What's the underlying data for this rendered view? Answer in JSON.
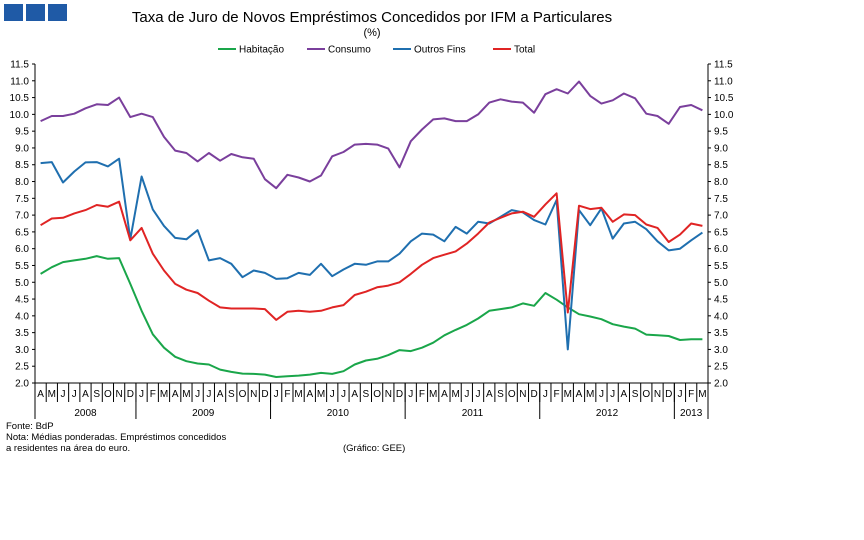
{
  "chart_data": {
    "type": "line",
    "title": "Taxa de Juro de Novos Empréstimos Concedidos por IFM a Particulares",
    "subtitle": "(%)",
    "ylim": [
      2.0,
      11.5
    ],
    "yticks": [
      "2.0",
      "2.5",
      "3.0",
      "3.5",
      "4.0",
      "4.5",
      "5.0",
      "5.5",
      "6.0",
      "6.5",
      "7.0",
      "7.5",
      "8.0",
      "8.5",
      "9.0",
      "9.5",
      "10.0",
      "10.5",
      "11.0",
      "11.5"
    ],
    "month_labels": [
      "A",
      "M",
      "J",
      "J",
      "A",
      "S",
      "O",
      "N",
      "D",
      "J",
      "F",
      "M",
      "A",
      "M",
      "J",
      "J",
      "A",
      "S",
      "O",
      "N",
      "D",
      "J",
      "F",
      "M",
      "A",
      "M",
      "J",
      "J",
      "A",
      "S",
      "O",
      "N",
      "D",
      "J",
      "F",
      "M",
      "A",
      "M",
      "J",
      "J",
      "A",
      "S",
      "O",
      "N",
      "D",
      "J",
      "F",
      "M",
      "A",
      "M",
      "J",
      "J",
      "A",
      "S",
      "O",
      "N",
      "D",
      "J",
      "F",
      "M"
    ],
    "year_labels": [
      {
        "label": "2008",
        "start": 0,
        "end": 9
      },
      {
        "label": "2009",
        "start": 9,
        "end": 21
      },
      {
        "label": "2010",
        "start": 21,
        "end": 33
      },
      {
        "label": "2011",
        "start": 33,
        "end": 45
      },
      {
        "label": "2012",
        "start": 45,
        "end": 57
      },
      {
        "label": "2013",
        "start": 57,
        "end": 60
      }
    ],
    "series": [
      {
        "name": "Habitação",
        "color": "#1aa64a",
        "values": [
          5.25,
          5.45,
          5.6,
          5.65,
          5.7,
          5.78,
          5.7,
          5.72,
          4.95,
          4.15,
          3.45,
          3.05,
          2.78,
          2.65,
          2.58,
          2.55,
          2.4,
          2.33,
          2.28,
          2.27,
          2.25,
          2.18,
          2.2,
          2.22,
          2.25,
          2.3,
          2.27,
          2.35,
          2.55,
          2.67,
          2.72,
          2.83,
          2.98,
          2.95,
          3.05,
          3.2,
          3.42,
          3.58,
          3.73,
          3.92,
          4.15,
          4.2,
          4.25,
          4.37,
          4.3,
          4.68,
          4.48,
          4.25,
          4.05,
          3.98,
          3.9,
          3.75,
          3.68,
          3.62,
          3.44,
          3.42,
          3.4,
          3.28,
          3.3,
          3.3
        ]
      },
      {
        "name": "Consumo",
        "color": "#7a3f9c",
        "values": [
          9.8,
          9.95,
          9.95,
          10.02,
          10.18,
          10.3,
          10.28,
          10.5,
          9.92,
          10.02,
          9.92,
          9.33,
          8.92,
          8.85,
          8.6,
          8.85,
          8.62,
          8.82,
          8.72,
          8.68,
          8.07,
          7.8,
          8.2,
          8.12,
          8.0,
          8.18,
          8.75,
          8.88,
          9.1,
          9.12,
          9.1,
          8.98,
          8.42,
          9.2,
          9.55,
          9.85,
          9.88,
          9.8,
          9.8,
          10.0,
          10.35,
          10.45,
          10.38,
          10.35,
          10.05,
          10.6,
          10.75,
          10.62,
          10.98,
          10.55,
          10.32,
          10.42,
          10.62,
          10.48,
          10.02,
          9.95,
          9.72,
          10.22,
          10.28,
          10.12
        ]
      },
      {
        "name": "Outros Fins",
        "color": "#1f6faf",
        "values": [
          8.55,
          8.58,
          7.97,
          8.3,
          8.57,
          8.58,
          8.45,
          8.68,
          6.28,
          8.15,
          7.17,
          6.68,
          6.32,
          6.28,
          6.55,
          5.65,
          5.72,
          5.55,
          5.15,
          5.35,
          5.28,
          5.1,
          5.12,
          5.28,
          5.22,
          5.55,
          5.18,
          5.38,
          5.55,
          5.52,
          5.62,
          5.62,
          5.85,
          6.22,
          6.45,
          6.42,
          6.22,
          6.65,
          6.45,
          6.8,
          6.75,
          6.95,
          7.15,
          7.08,
          6.85,
          6.72,
          7.45,
          3.0,
          7.15,
          6.7,
          7.2,
          6.3,
          6.75,
          6.8,
          6.58,
          6.22,
          5.95,
          6.0,
          6.25,
          6.48
        ]
      },
      {
        "name": "Total",
        "color": "#e02424",
        "values": [
          6.7,
          6.9,
          6.92,
          7.05,
          7.15,
          7.3,
          7.25,
          7.4,
          6.25,
          6.62,
          5.85,
          5.35,
          4.95,
          4.78,
          4.68,
          4.45,
          4.25,
          4.22,
          4.22,
          4.22,
          4.2,
          3.88,
          4.12,
          4.15,
          4.12,
          4.15,
          4.25,
          4.32,
          4.62,
          4.72,
          4.85,
          4.9,
          5.0,
          5.25,
          5.52,
          5.72,
          5.82,
          5.92,
          6.15,
          6.45,
          6.78,
          6.92,
          7.05,
          7.1,
          6.95,
          7.32,
          7.65,
          4.1,
          7.28,
          7.18,
          7.22,
          6.8,
          7.02,
          7.0,
          6.72,
          6.62,
          6.2,
          6.42,
          6.75,
          6.68
        ]
      }
    ]
  },
  "notes": {
    "source": "Fonte: BdP",
    "note_line1": "Nota: Médias ponderadas. Empréstimos concedidos",
    "note_line2": "a residentes na área do euro.",
    "credit": "(Gráfico: GEE)"
  }
}
